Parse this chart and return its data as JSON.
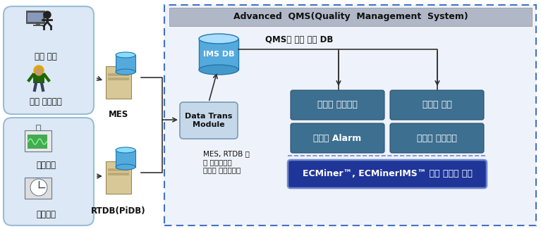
{
  "fig_width": 7.67,
  "fig_height": 3.25,
  "bg_color": "#ffffff",
  "outer_border_color": "#4472c4",
  "header_text": "Advanced  QMS(Quality  Management  System)",
  "imsdb_label": "IMS DB",
  "qms_db_label": "QMS를 위한 통합 DB",
  "datatrans_label": "Data Trans\nModule",
  "mes_label": "MES",
  "rtdb_label": "RTDB(PiDB)",
  "quality_inspect_label": "품질 검사",
  "engineer_label": "현장 엔지니어",
  "measure_label": "계측장비",
  "instrument_label": "측정장비",
  "interface_text": "MES, RTDB 등\n타 시스템과의\n데이터 인터페이스",
  "box1_label": "실시간 모니터링",
  "box2_label": "실시간 분석",
  "box3_label": "부적합 Alarm",
  "box4_label": "다변량 품질관리",
  "bottom_bar_text": "ECMiner™, ECMinerIMS™ 기반 시스템 구축",
  "teal_box_color": "#3d6f90",
  "bottom_bar_bg": "#1f3598",
  "bottom_bar_border": "#7088cc",
  "header_bar_color": "#b0b8c8",
  "datatrans_box_color": "#c5d8ea",
  "left_box_color": "#dce8f5",
  "left_box_edge": "#9bbdd8"
}
